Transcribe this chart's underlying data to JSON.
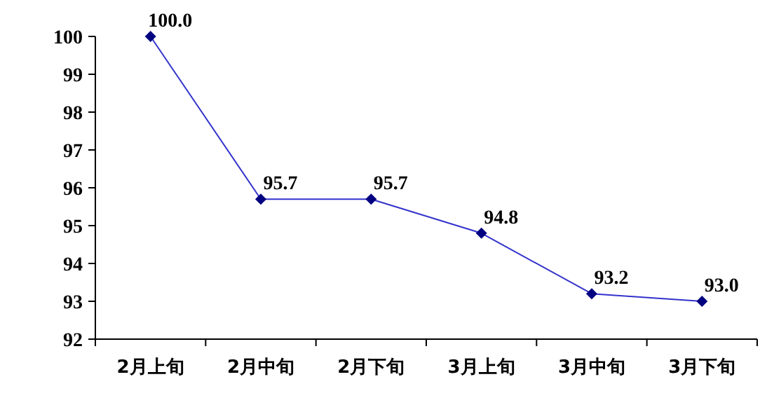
{
  "chart_data": {
    "type": "line",
    "categories": [
      "2月上旬",
      "2月中旬",
      "2月下旬",
      "3月上旬",
      "3月中旬",
      "3月下旬"
    ],
    "series": [
      {
        "color": "#000080",
        "values": [
          100.0,
          95.7,
          95.7,
          94.8,
          93.2,
          93.0
        ],
        "value_labels": [
          "100.0",
          "95.7",
          "95.7",
          "94.8",
          "93.2",
          "93.0"
        ]
      }
    ],
    "ylim": [
      92,
      100
    ],
    "yticks": [
      92,
      93,
      94,
      95,
      96,
      97,
      98,
      99,
      100
    ],
    "marker": "diamond",
    "grid": false
  }
}
